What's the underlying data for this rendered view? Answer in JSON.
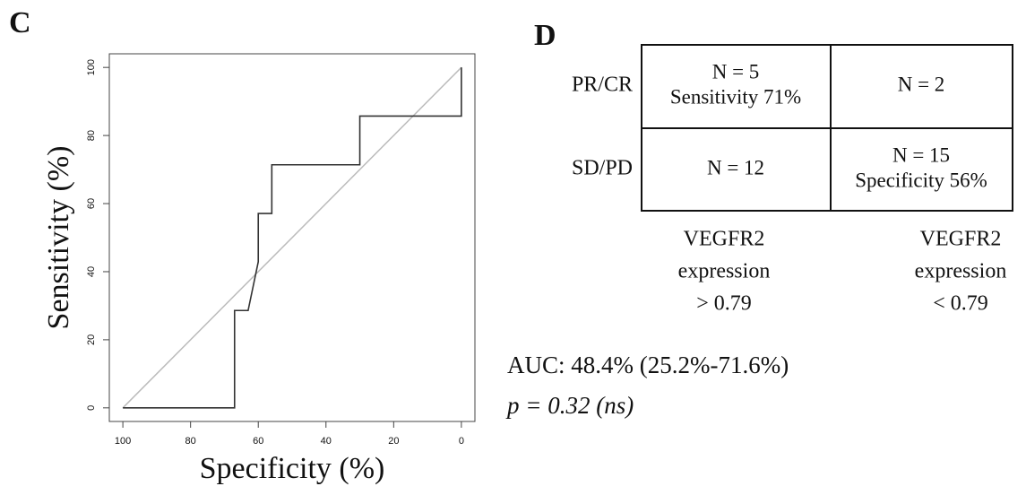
{
  "panel_labels": [
    "C",
    "D"
  ],
  "chart_data": {
    "type": "line",
    "xlabel": "Specificity (%)",
    "ylabel": "Sensitivity (%)",
    "xlim": [
      104,
      -4
    ],
    "ylim": [
      -4,
      104
    ],
    "xticks": [
      100,
      80,
      60,
      40,
      20,
      0
    ],
    "yticks": [
      0,
      20,
      40,
      60,
      80,
      100
    ],
    "series": [
      {
        "color": "#333333",
        "x": [
          100,
          67,
          67,
          63,
          60,
          60,
          56,
          56,
          30,
          30,
          0,
          0
        ],
        "values": [
          0,
          0,
          28.6,
          28.6,
          42.9,
          57.1,
          57.1,
          71.4,
          71.4,
          85.7,
          85.7,
          100
        ]
      }
    ],
    "reference": {
      "color": "#bbbbbb",
      "x": [
        100,
        0
      ],
      "values": [
        0,
        100
      ]
    }
  },
  "table": {
    "row_labels": [
      "PR/CR",
      "SD/PD"
    ],
    "rows": [
      [
        [
          "N = 5",
          "Sensitivity  71%"
        ],
        [
          "N = 2"
        ]
      ],
      [
        [
          "N = 12"
        ],
        [
          "N = 15",
          "Specificity  56%"
        ]
      ]
    ],
    "column_labels": [
      [
        "VEGFR2",
        "expression",
        "> 0.79"
      ],
      [
        "VEGFR2",
        "expression",
        "< 0.79"
      ]
    ]
  },
  "annotations": [
    "AUC: 48.4% (25.2%-71.6%)",
    "p = 0.32 (ns)"
  ]
}
